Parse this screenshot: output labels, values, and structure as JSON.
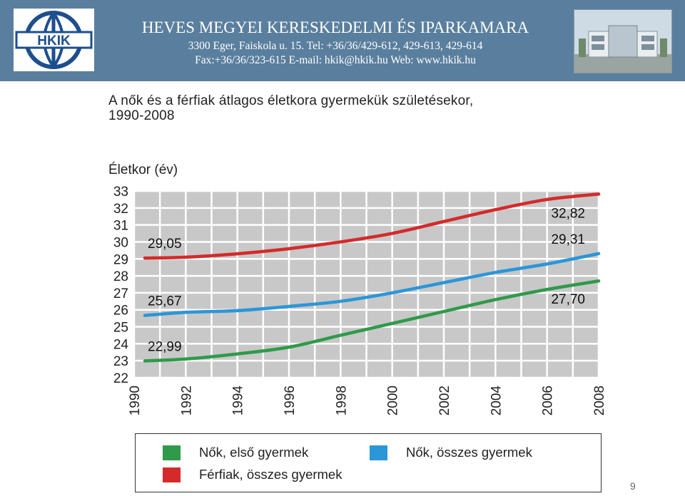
{
  "header": {
    "logo_text": "HKIK",
    "org_name": "HEVES MEGYEI KERESKEDELMI ÉS IPARKAMARA",
    "address_line": "3300 Eger, Faiskola u. 15.   Tel: +36/36/429-612, 429-613, 429-614",
    "contact_line": "Fax:+36/36/323-615   E-mail: hkik@hkik.hu   Web: www.hkik.hu"
  },
  "page_number": "9",
  "colors": {
    "header_bg": "#5a7f9e",
    "grid_bg": "#c8c8c8",
    "grid_line": "#ffffff",
    "red": "#d42a2a",
    "blue": "#2b96d8",
    "green": "#2f9a4a"
  },
  "chart_data": {
    "type": "line",
    "title": "A nők és a férfiak átlagos életkora gyermekük születésekor, 1990-2008",
    "title_lines": [
      "A nők és a férfiak átlagos életkora gyermekük születésekor,",
      "1990-2008"
    ],
    "ylabel": "Életkor (év)",
    "xlabel": "",
    "ylim": [
      22,
      33
    ],
    "xlim": [
      1990,
      2008
    ],
    "yticks": [
      33,
      32,
      31,
      30,
      29,
      28,
      27,
      26,
      25,
      24,
      23,
      22
    ],
    "xticks": [
      "1990",
      "1992",
      "1994",
      "1996",
      "1998",
      "2000",
      "2002",
      "2004",
      "2006",
      "2008"
    ],
    "grid": true,
    "legend_position": "bottom",
    "x": [
      1990,
      1992,
      1994,
      1996,
      1998,
      2000,
      2002,
      2004,
      2006,
      2008
    ],
    "series": [
      {
        "name": "Férfiak, összes gyermek",
        "color": "#d42a2a",
        "values": [
          29.05,
          29.1,
          29.3,
          29.6,
          30.0,
          30.5,
          31.2,
          31.9,
          32.5,
          32.82
        ],
        "start_label": "29,05",
        "end_label": "32,82"
      },
      {
        "name": "Nők, összes gyermek",
        "color": "#2b96d8",
        "values": [
          25.67,
          25.85,
          25.95,
          26.2,
          26.5,
          27.0,
          27.6,
          28.2,
          28.7,
          29.31
        ],
        "start_label": "25,67",
        "end_label": "29,31"
      },
      {
        "name": "Nők, első gyermek",
        "color": "#2f9a4a",
        "values": [
          22.99,
          23.1,
          23.4,
          23.8,
          24.5,
          25.2,
          25.9,
          26.6,
          27.2,
          27.7
        ],
        "start_label": "22,99",
        "end_label": "27,70"
      }
    ],
    "legend": [
      {
        "label": "Nők, első gyermek",
        "color": "#2f9a4a"
      },
      {
        "label": "Nők, összes gyermek",
        "color": "#2b96d8"
      },
      {
        "label": "Férfiak, összes gyermek",
        "color": "#d42a2a"
      }
    ]
  }
}
